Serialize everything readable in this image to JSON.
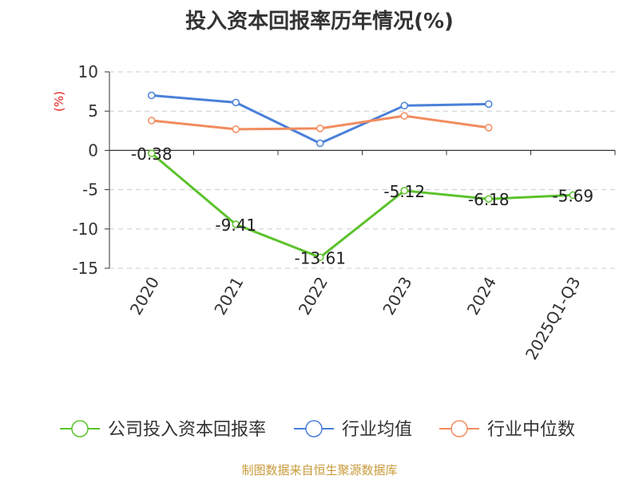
{
  "title": "投入资本回报率历年情况(%)",
  "source": "制图数据来自恒生聚源数据库",
  "chart_data": {
    "type": "line",
    "title": "投入资本回报率历年情况(%)",
    "ylabel": "(%)",
    "categories": [
      "2020",
      "2021",
      "2022",
      "2023",
      "2024",
      "2025Q1-Q3"
    ],
    "ylim": [
      -15,
      10
    ],
    "yticks": [
      10,
      5,
      0,
      -5,
      -10,
      -15
    ],
    "grid": true,
    "legend_position": "bottom",
    "series": [
      {
        "name": "公司投入资本回报率",
        "color": "#5cc22c",
        "values": [
          -0.38,
          -9.41,
          -13.61,
          -5.12,
          -6.18,
          -5.69
        ],
        "labels": [
          "-0.38",
          "-9.41",
          "-13.61",
          "-5.12",
          "-6.18",
          "-5.69"
        ]
      },
      {
        "name": "行业均值",
        "color": "#4a80d9",
        "values": [
          7.0,
          6.1,
          0.9,
          5.7,
          5.9,
          null
        ]
      },
      {
        "name": "行业中位数",
        "color": "#f28c5e",
        "values": [
          3.8,
          2.7,
          2.8,
          4.4,
          2.9,
          null
        ]
      }
    ]
  }
}
